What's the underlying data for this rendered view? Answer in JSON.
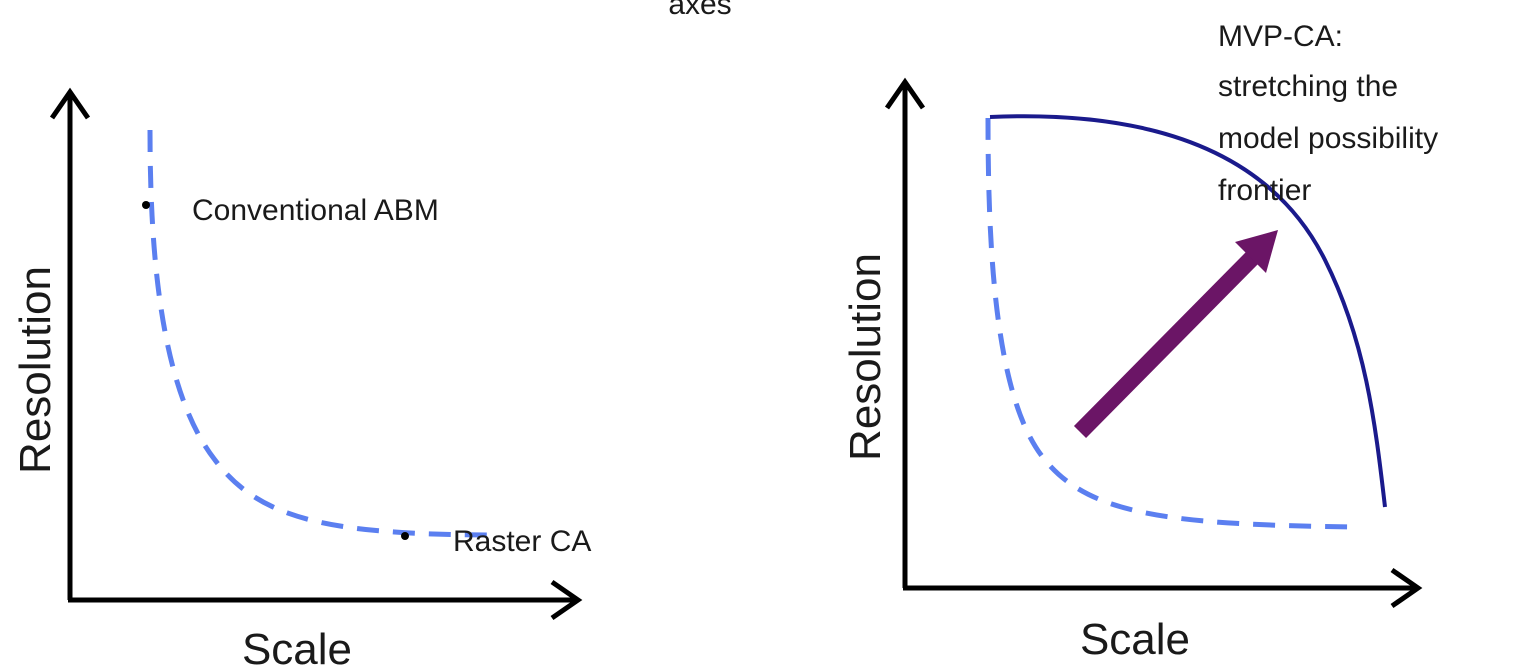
{
  "cropped_top_text": "axes",
  "left_panel": {
    "y_axis_label": "Resolution",
    "x_axis_label": "Scale",
    "points": [
      {
        "label": "Conventional ABM"
      },
      {
        "label": "Raster CA"
      }
    ],
    "curve_style": "dashed",
    "curve_color": "#5b7ff0"
  },
  "right_panel": {
    "y_axis_label": "Resolution",
    "x_axis_label": "Scale",
    "annotation_lines": [
      "MVP-CA:",
      "stretching the",
      "model possibility",
      "frontier"
    ],
    "old_frontier_style": "dashed",
    "old_frontier_color": "#5b7ff0",
    "new_frontier_style": "solid",
    "new_frontier_color": "#1a1a8c",
    "arrow_color": "#6b1566"
  }
}
